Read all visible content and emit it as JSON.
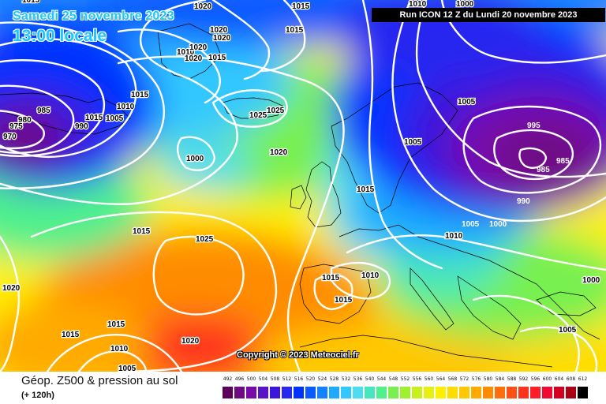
{
  "header": {
    "date": "Samedi 25 novembre 2023",
    "time": "13:00 locale",
    "run": "Run ICON 12 Z du Lundi 20 novembre 2023"
  },
  "copyright": "Copyright © 2023 Meteociel.fr",
  "legend": {
    "title": "Géop. Z500 & pression au sol",
    "subtitle": "(+ 120h)",
    "scale": [
      {
        "value": "492",
        "color": "#5a005a"
      },
      {
        "value": "496",
        "color": "#6e0a82"
      },
      {
        "value": "500",
        "color": "#780aaa"
      },
      {
        "value": "504",
        "color": "#5a14c8"
      },
      {
        "value": "508",
        "color": "#3c14dc"
      },
      {
        "value": "512",
        "color": "#2828f0"
      },
      {
        "value": "516",
        "color": "#0032ff"
      },
      {
        "value": "520",
        "color": "#0a5aff"
      },
      {
        "value": "524",
        "color": "#1482ff"
      },
      {
        "value": "528",
        "color": "#1eaaff"
      },
      {
        "value": "532",
        "color": "#32c8ff"
      },
      {
        "value": "536",
        "color": "#50dcf0"
      },
      {
        "value": "540",
        "color": "#46e6be"
      },
      {
        "value": "544",
        "color": "#50f08c"
      },
      {
        "value": "548",
        "color": "#78f050"
      },
      {
        "value": "552",
        "color": "#a0f032"
      },
      {
        "value": "556",
        "color": "#c8f01e"
      },
      {
        "value": "560",
        "color": "#e6f014"
      },
      {
        "value": "564",
        "color": "#fff000"
      },
      {
        "value": "568",
        "color": "#ffdc00"
      },
      {
        "value": "572",
        "color": "#ffc800"
      },
      {
        "value": "576",
        "color": "#ffaa00"
      },
      {
        "value": "580",
        "color": "#ff8c00"
      },
      {
        "value": "584",
        "color": "#ff6e0a"
      },
      {
        "value": "588",
        "color": "#ff5014"
      },
      {
        "value": "592",
        "color": "#ff321e"
      },
      {
        "value": "596",
        "color": "#ff1e28"
      },
      {
        "value": "600",
        "color": "#f00a32"
      },
      {
        "value": "604",
        "color": "#d2001e"
      },
      {
        "value": "608",
        "color": "#aa0014"
      },
      {
        "value": "612",
        "color": "#000000"
      }
    ]
  },
  "isobar_labels": [
    "1015",
    "1020",
    "1015",
    "1020",
    "1020",
    "1015",
    "1010",
    "1020",
    "1015",
    "1020",
    "1015",
    "1005",
    "1015",
    "1010",
    "1025",
    "1025",
    "985",
    "980",
    "975",
    "970",
    "990",
    "1000",
    "1005",
    "1010",
    "1000",
    "1020",
    "1005",
    "995",
    "985",
    "985",
    "990",
    "1015",
    "1005",
    "1000",
    "1010",
    "1015",
    "1025",
    "1015",
    "1010",
    "1015",
    "1020",
    "1000",
    "1015",
    "1015",
    "1010",
    "1005",
    "1020",
    "1005"
  ],
  "colors": {
    "isobar": "#ffffff",
    "coast": "#000000",
    "title_text": "#19c8ff",
    "run_box": "#000000"
  }
}
